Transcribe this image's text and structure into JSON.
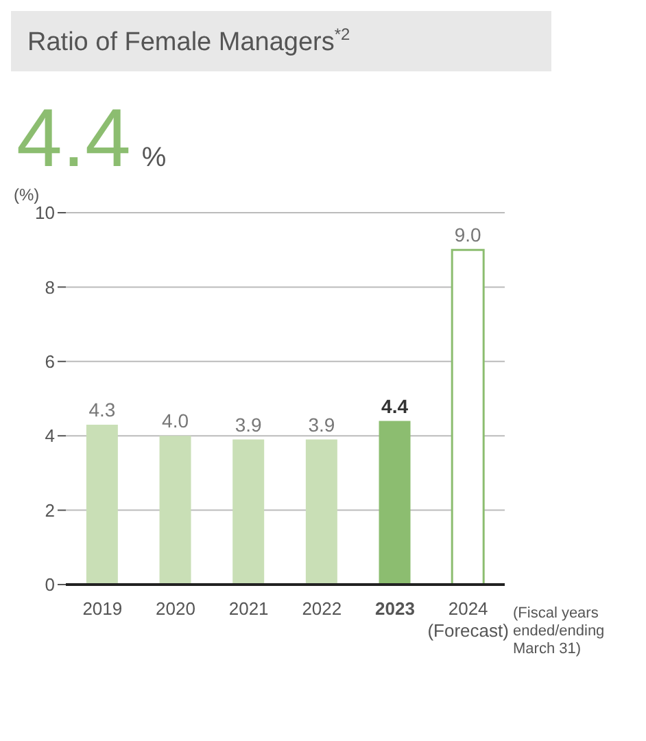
{
  "chart_data": {
    "type": "bar",
    "title": "Ratio of Female Managers$^{*2}$",
    "subtitle": "4.4%",
    "ylabel": "(%)",
    "categories": [
      "2019",
      "2020",
      "2021",
      "2022",
      "2023",
      "2024\n(Forecast)"
    ],
    "values": [
      4.3,
      4.0,
      3.9,
      3.9,
      4.4,
      9.0
    ],
    "colors": [
      "#c9dfb6",
      "#c9dfb6",
      "#c9dfb6",
      "#c9dfb6",
      "#8cbd70",
      "#ffffff"
    ],
    "ylim": [
      0,
      10
    ],
    "yticks": [
      0,
      2,
      4,
      6,
      8,
      10
    ],
    "grid": "y",
    "value_labels": [
      "4.3",
      "4.0",
      "3.9",
      "3.9",
      "4.4",
      "9.0"
    ],
    "annotations": [
      "(Fiscal years ended/ending March 31)"
    ]
  }
}
